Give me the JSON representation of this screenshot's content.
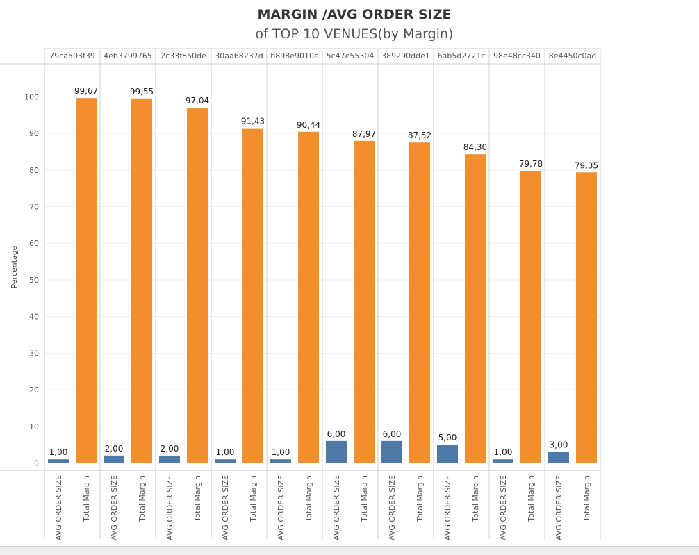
{
  "colors": {
    "avg_order_size": "#4e79a7",
    "total_margin": "#f28e2b",
    "grid": "#f0f0f0",
    "border": "#d0d0d0",
    "text": "#555555"
  },
  "chart_data": {
    "type": "bar",
    "title": "MARGIN /AVG ORDER SIZE",
    "subtitle": "of TOP 10 VENUES(by Margin)",
    "ylabel": "Percentage",
    "xlabel": "",
    "ylim": [
      -2,
      109
    ],
    "yticks": [
      0,
      10,
      20,
      30,
      40,
      50,
      60,
      70,
      80,
      90,
      100
    ],
    "venues": [
      "79ca503f39",
      "4eb3799765",
      "2c33f850de",
      "30aa68237d",
      "b898e9010e",
      "5c47e55304",
      "389290dde1",
      "6ab5d2721c",
      "98e48cc340",
      "8e4450c0ad"
    ],
    "measures": [
      "AVG ORDER SIZE",
      "Total Margin"
    ],
    "series": [
      {
        "name": "AVG ORDER SIZE",
        "values": [
          1,
          2,
          2,
          1,
          1,
          6,
          6,
          5,
          1,
          3
        ],
        "labels": [
          "1,00",
          "2,00",
          "2,00",
          "1,00",
          "1,00",
          "6,00",
          "6,00",
          "5,00",
          "1,00",
          "3,00"
        ]
      },
      {
        "name": "Total Margin",
        "values": [
          99.67,
          99.55,
          97.04,
          91.43,
          90.44,
          87.97,
          87.52,
          84.3,
          79.78,
          79.35
        ],
        "labels": [
          "99,67",
          "99,55",
          "97,04",
          "91,43",
          "90,44",
          "87,97",
          "87,52",
          "84,30",
          "79,78",
          "79,35"
        ]
      }
    ],
    "grid": true,
    "legend": "none"
  }
}
